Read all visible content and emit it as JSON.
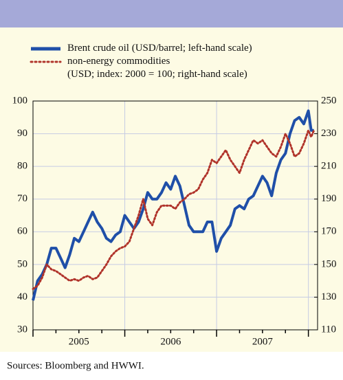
{
  "chart_data": {
    "type": "line",
    "source": "Sources: Bloomberg and HWWI.",
    "xlim": [
      2005,
      2008.1
    ],
    "xticks": [
      {
        "value": 2005.5,
        "label": "2005"
      },
      {
        "value": 2006.5,
        "label": "2006"
      },
      {
        "value": 2007.5,
        "label": "2007"
      }
    ],
    "ylim": [
      30,
      100
    ],
    "yticks": [
      30,
      40,
      50,
      60,
      70,
      80,
      90,
      100
    ],
    "y2lim": [
      110,
      250
    ],
    "y2ticks": [
      110,
      130,
      150,
      170,
      190,
      210,
      230,
      250
    ],
    "grid": true,
    "x": [
      2005.0,
      2005.05,
      2005.1,
      2005.15,
      2005.2,
      2005.25,
      2005.3,
      2005.35,
      2005.4,
      2005.45,
      2005.5,
      2005.55,
      2005.6,
      2005.65,
      2005.7,
      2005.75,
      2005.8,
      2005.85,
      2005.9,
      2005.95,
      2006.0,
      2006.05,
      2006.1,
      2006.15,
      2006.2,
      2006.25,
      2006.3,
      2006.35,
      2006.4,
      2006.45,
      2006.5,
      2006.55,
      2006.6,
      2006.65,
      2006.7,
      2006.75,
      2006.8,
      2006.85,
      2006.9,
      2006.95,
      2007.0,
      2007.05,
      2007.1,
      2007.15,
      2007.2,
      2007.25,
      2007.3,
      2007.35,
      2007.4,
      2007.45,
      2007.5,
      2007.55,
      2007.6,
      2007.65,
      2007.7,
      2007.75,
      2007.8,
      2007.85,
      2007.9,
      2007.95,
      2008.0,
      2008.03,
      2008.06
    ],
    "series": [
      {
        "name": "Brent crude oil (USD/barrel; left-hand scale)",
        "color": "#1f4fa8",
        "style": "solid",
        "values": [
          39,
          45,
          47,
          50,
          55,
          55,
          52,
          49,
          53,
          58,
          57,
          60,
          63,
          66,
          63,
          61,
          58,
          57,
          59,
          60,
          65,
          63,
          61,
          63,
          67,
          72,
          70,
          70,
          72,
          75,
          73,
          77,
          74,
          68,
          62,
          60,
          60,
          60,
          63,
          63,
          54,
          58,
          60,
          62,
          67,
          68,
          67,
          70,
          71,
          74,
          77,
          75,
          71,
          78,
          82,
          84,
          90,
          94,
          95,
          93,
          97,
          91,
          91
        ]
      },
      {
        "name": "non-energy commodities\n(USD; index: 2000 = 100; right-hand scale)",
        "color": "#b0332a",
        "style": "dotted",
        "axis": "y2",
        "values": [
          135,
          137,
          142,
          150,
          147,
          146,
          144,
          142,
          140,
          141,
          140,
          142,
          143,
          141,
          142,
          146,
          150,
          155,
          158,
          160,
          161,
          164,
          172,
          180,
          190,
          178,
          174,
          182,
          186,
          186,
          186,
          184,
          188,
          190,
          193,
          194,
          196,
          202,
          206,
          214,
          212,
          216,
          220,
          214,
          210,
          206,
          214,
          220,
          226,
          224,
          226,
          222,
          218,
          216,
          222,
          230,
          224,
          216,
          218,
          224,
          232,
          228,
          232
        ]
      }
    ]
  }
}
